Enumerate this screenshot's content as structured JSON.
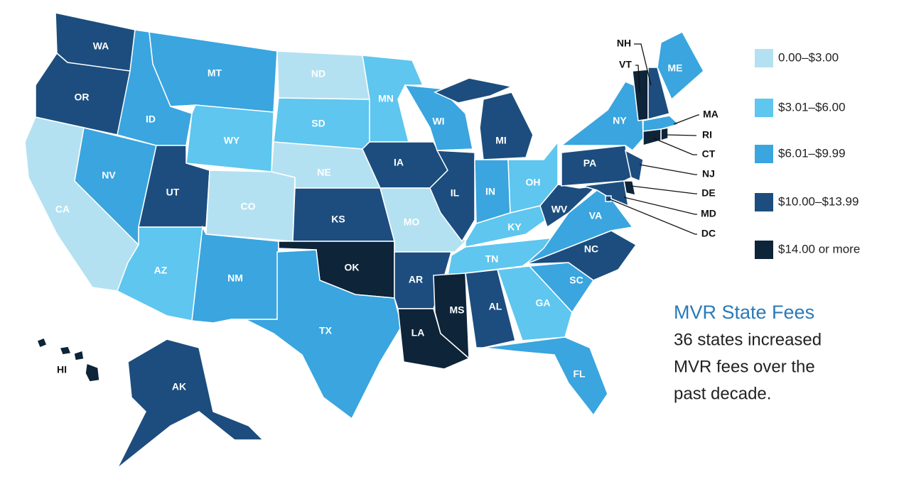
{
  "map": {
    "title": "MVR State Fees",
    "subtitle": [
      "36 states increased",
      "MVR fees over the",
      "past decade."
    ],
    "legend": [
      {
        "label": "0.00–$3.00",
        "color": "#b4e1f1"
      },
      {
        "label": "$3.01–$6.00",
        "color": "#5ec6ef"
      },
      {
        "label": "$6.01–$9.99",
        "color": "#3aa5df"
      },
      {
        "label": "$10.00–$13.99",
        "color": "#1c4d7e"
      },
      {
        "label": "$14.00 or more",
        "color": "#0d2439"
      }
    ],
    "states": [
      {
        "abbr": "WA",
        "tier": 3
      },
      {
        "abbr": "OR",
        "tier": 3
      },
      {
        "abbr": "CA",
        "tier": 0
      },
      {
        "abbr": "NV",
        "tier": 2
      },
      {
        "abbr": "ID",
        "tier": 2
      },
      {
        "abbr": "MT",
        "tier": 2
      },
      {
        "abbr": "WY",
        "tier": 1
      },
      {
        "abbr": "UT",
        "tier": 3
      },
      {
        "abbr": "AZ",
        "tier": 1
      },
      {
        "abbr": "CO",
        "tier": 0
      },
      {
        "abbr": "NM",
        "tier": 2
      },
      {
        "abbr": "ND",
        "tier": 0
      },
      {
        "abbr": "SD",
        "tier": 1
      },
      {
        "abbr": "NE",
        "tier": 0
      },
      {
        "abbr": "KS",
        "tier": 3
      },
      {
        "abbr": "OK",
        "tier": 4
      },
      {
        "abbr": "TX",
        "tier": 2
      },
      {
        "abbr": "MN",
        "tier": 1
      },
      {
        "abbr": "IA",
        "tier": 3
      },
      {
        "abbr": "MO",
        "tier": 0
      },
      {
        "abbr": "AR",
        "tier": 3
      },
      {
        "abbr": "LA",
        "tier": 4
      },
      {
        "abbr": "WI",
        "tier": 2
      },
      {
        "abbr": "IL",
        "tier": 3
      },
      {
        "abbr": "MI",
        "tier": 3
      },
      {
        "abbr": "IN",
        "tier": 2
      },
      {
        "abbr": "OH",
        "tier": 1
      },
      {
        "abbr": "KY",
        "tier": 1
      },
      {
        "abbr": "TN",
        "tier": 1
      },
      {
        "abbr": "MS",
        "tier": 4
      },
      {
        "abbr": "AL",
        "tier": 3
      },
      {
        "abbr": "GA",
        "tier": 1
      },
      {
        "abbr": "FL",
        "tier": 2
      },
      {
        "abbr": "SC",
        "tier": 2
      },
      {
        "abbr": "NC",
        "tier": 3
      },
      {
        "abbr": "VA",
        "tier": 2
      },
      {
        "abbr": "WV",
        "tier": 3
      },
      {
        "abbr": "PA",
        "tier": 3
      },
      {
        "abbr": "NY",
        "tier": 2
      },
      {
        "abbr": "VT",
        "tier": 4
      },
      {
        "abbr": "NH",
        "tier": 3
      },
      {
        "abbr": "ME",
        "tier": 2
      },
      {
        "abbr": "MA",
        "tier": 2
      },
      {
        "abbr": "RI",
        "tier": 4
      },
      {
        "abbr": "CT",
        "tier": 4
      },
      {
        "abbr": "NJ",
        "tier": 3
      },
      {
        "abbr": "DE",
        "tier": 4
      },
      {
        "abbr": "MD",
        "tier": 3
      },
      {
        "abbr": "DC",
        "tier": 3
      },
      {
        "abbr": "AK",
        "tier": 3
      },
      {
        "abbr": "HI",
        "tier": 4
      }
    ]
  }
}
